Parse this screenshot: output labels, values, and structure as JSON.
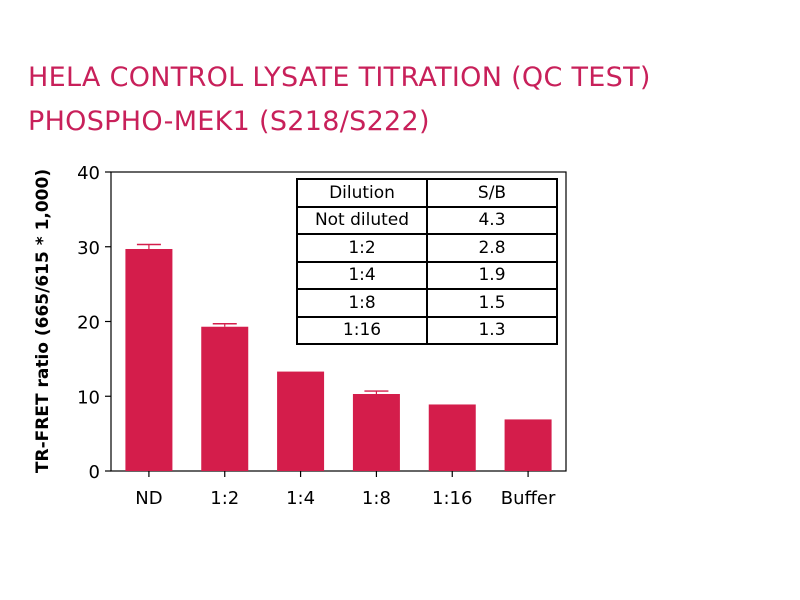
{
  "title": {
    "line1": "HELA CONTROL LYSATE TITRATION (QC TEST)",
    "line2": "PHOSPHO-MEK1 (S218/S222)"
  },
  "colors": {
    "title": "#c8205a",
    "bar": "#d41d4b",
    "axis": "#000000"
  },
  "chart_data": {
    "type": "bar",
    "categories": [
      "ND",
      "1:2",
      "1:4",
      "1:8",
      "1:16",
      "Buffer"
    ],
    "values": [
      29.7,
      19.3,
      13.3,
      10.3,
      8.9,
      6.9
    ],
    "errors": [
      0.6,
      0.4,
      0,
      0.4,
      0,
      0
    ],
    "ylabel": "TR-FRET ratio (665/615 * 1,000)",
    "xlabel": "",
    "ylim": [
      0,
      40
    ],
    "yticks": [
      0,
      10,
      20,
      30,
      40
    ],
    "grid": false
  },
  "table": {
    "headers": [
      "Dilution",
      "S/B"
    ],
    "rows": [
      [
        "Not diluted",
        "4.3"
      ],
      [
        "1:2",
        "2.8"
      ],
      [
        "1:4",
        "1.9"
      ],
      [
        "1:8",
        "1.5"
      ],
      [
        "1:16",
        "1.3"
      ]
    ]
  }
}
